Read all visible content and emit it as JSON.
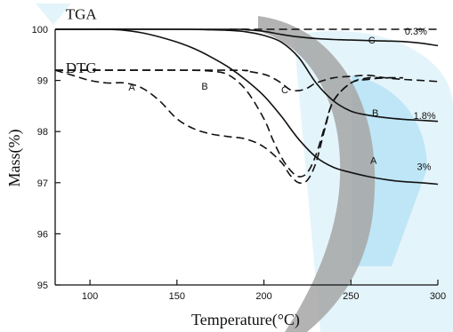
{
  "chart_data": {
    "type": "line",
    "title": "",
    "xlabel": "Temperature(°C)",
    "ylabel": "Mass(%)",
    "xlim": [
      80,
      300
    ],
    "ylim": [
      95,
      100
    ],
    "xticks": [
      100,
      150,
      200,
      250,
      300
    ],
    "yticks": [
      95,
      96,
      97,
      98,
      99,
      100
    ],
    "xtick_labels": [
      "100",
      "150",
      "200",
      "250",
      "300"
    ],
    "ytick_labels": [
      "95",
      "96",
      "97",
      "98",
      "99",
      "100"
    ],
    "grid": false,
    "group_labels": [
      {
        "text": "TGA",
        "x": 86,
        "y": 100.2
      },
      {
        "text": "DTG",
        "x": 86,
        "y": 99.15
      }
    ],
    "series": [
      {
        "name": "A",
        "kind": "TGA",
        "style": "solid",
        "end_label": "3%",
        "x": [
          80,
          100,
          110,
          120,
          130,
          140,
          150,
          160,
          170,
          180,
          190,
          200,
          210,
          220,
          230,
          240,
          250,
          260,
          270,
          280,
          290,
          300
        ],
        "y": [
          100,
          100,
          100,
          99.98,
          99.93,
          99.85,
          99.75,
          99.62,
          99.45,
          99.25,
          99.0,
          98.7,
          98.3,
          97.85,
          97.5,
          97.3,
          97.2,
          97.12,
          97.06,
          97.02,
          97.0,
          96.97
        ]
      },
      {
        "name": "B",
        "kind": "TGA",
        "style": "solid",
        "end_label": "1.8%",
        "x": [
          80,
          150,
          170,
          180,
          190,
          200,
          210,
          220,
          230,
          240,
          250,
          260,
          270,
          280,
          290,
          300
        ],
        "y": [
          100,
          100,
          99.99,
          99.98,
          99.95,
          99.88,
          99.75,
          99.45,
          98.95,
          98.6,
          98.4,
          98.32,
          98.27,
          98.24,
          98.22,
          98.2
        ]
      },
      {
        "name": "C",
        "kind": "TGA",
        "style": "solid",
        "end_label": "0.3%",
        "x": [
          80,
          180,
          190,
          200,
          210,
          220,
          230,
          240,
          250,
          260,
          270,
          280,
          290,
          300
        ],
        "y": [
          100,
          100,
          99.99,
          99.96,
          99.9,
          99.85,
          99.82,
          99.8,
          99.79,
          99.78,
          99.77,
          99.76,
          99.73,
          99.68
        ]
      },
      {
        "name": "A",
        "kind": "DTG",
        "style": "dashed",
        "x": [
          80,
          90,
          100,
          110,
          120,
          130,
          140,
          150,
          160,
          170,
          180,
          190,
          200,
          210,
          215,
          220,
          225,
          230,
          235,
          240,
          250,
          260,
          270,
          280
        ],
        "y": [
          99.2,
          99.1,
          99.0,
          98.95,
          98.95,
          98.85,
          98.6,
          98.25,
          98.05,
          97.95,
          97.9,
          97.85,
          97.7,
          97.4,
          97.15,
          97.0,
          97.05,
          97.4,
          98.05,
          98.6,
          98.95,
          99.05,
          99.05,
          99.05
        ]
      },
      {
        "name": "B",
        "kind": "DTG",
        "style": "dashed",
        "x": [
          80,
          150,
          170,
          180,
          190,
          200,
          205,
          210,
          215,
          220,
          225,
          230,
          235,
          240,
          250,
          260,
          270,
          280
        ],
        "y": [
          99.2,
          99.2,
          99.18,
          99.1,
          98.8,
          98.25,
          97.85,
          97.5,
          97.25,
          97.12,
          97.2,
          97.55,
          98.1,
          98.6,
          98.95,
          99.02,
          99.05,
          99.05
        ]
      },
      {
        "name": "C",
        "kind": "DTG",
        "style": "dashed",
        "x": [
          80,
          180,
          190,
          200,
          205,
          210,
          215,
          220,
          225,
          230,
          240,
          250,
          260,
          270,
          280,
          290,
          300
        ],
        "y": [
          99.2,
          99.2,
          99.18,
          99.12,
          99.05,
          98.95,
          98.82,
          98.8,
          98.85,
          98.95,
          99.05,
          99.08,
          99.1,
          99.05,
          99.02,
          99.0,
          98.98
        ]
      },
      {
        "name": "",
        "kind": "TGA-baseline",
        "style": "dashed",
        "x": [
          180,
          220,
          260,
          300
        ],
        "y": [
          100,
          100,
          100,
          100
        ]
      }
    ],
    "curve_labels": [
      {
        "text": "A",
        "x": 124,
        "y": 98.8
      },
      {
        "text": "B",
        "x": 166,
        "y": 98.82
      },
      {
        "text": "C",
        "x": 212,
        "y": 98.75
      },
      {
        "text": "C",
        "x": 262,
        "y": 99.72
      },
      {
        "text": "B",
        "x": 264,
        "y": 98.3
      },
      {
        "text": "A",
        "x": 263,
        "y": 97.37
      }
    ],
    "loss_labels": [
      {
        "text": "0.3%",
        "x": 281,
        "y": 99.9
      },
      {
        "text": "1.8%",
        "x": 286,
        "y": 98.25
      },
      {
        "text": "3%",
        "x": 288,
        "y": 97.25
      }
    ]
  }
}
